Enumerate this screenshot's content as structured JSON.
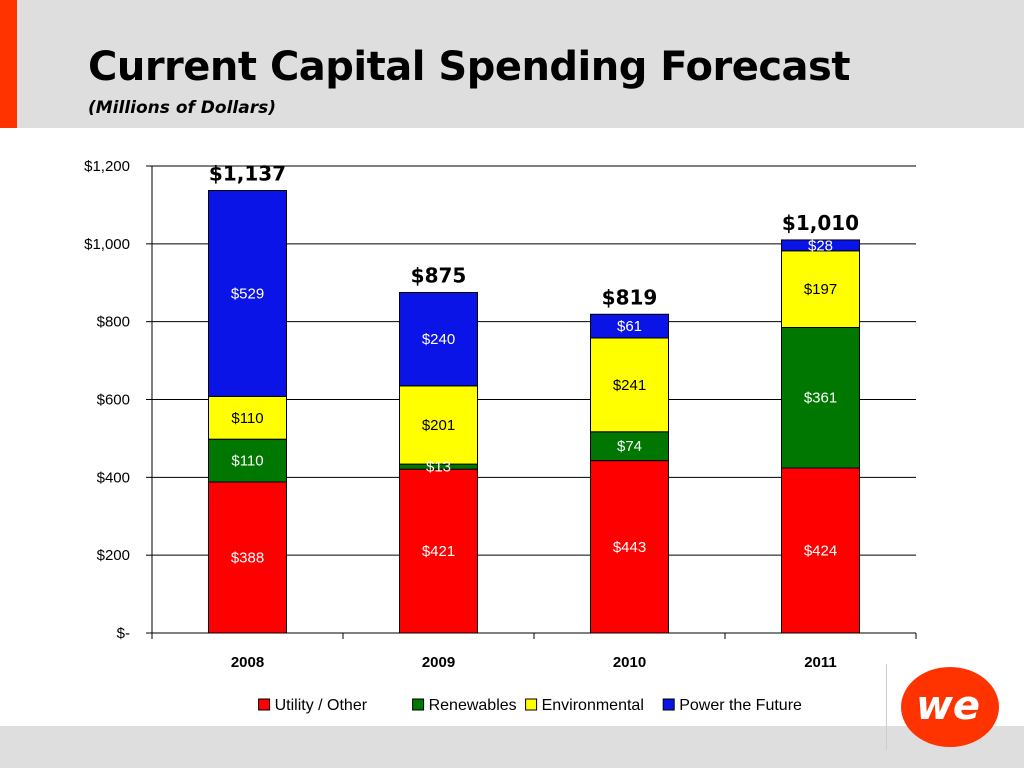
{
  "slide": {
    "title": "Current Capital Spending Forecast",
    "subtitle": "(Millions of Dollars)",
    "accent_color": "#ff3300"
  },
  "logo": {
    "text": "we",
    "color": "#ff3300",
    "icon": "we-energies-logo"
  },
  "chart_data": {
    "type": "bar",
    "stacked": true,
    "categories": [
      "2008",
      "2009",
      "2010",
      "2011"
    ],
    "series": [
      {
        "name": "Utility / Other",
        "color": "#ff0000",
        "values": [
          388,
          421,
          443,
          424
        ],
        "labels": [
          "$388",
          "$421",
          "$443",
          "$424"
        ]
      },
      {
        "name": "Renewables",
        "color": "#007700",
        "values": [
          110,
          13,
          74,
          361
        ],
        "labels": [
          "$110",
          "$13",
          "$74",
          "$361"
        ]
      },
      {
        "name": "Environmental",
        "color": "#ffff00",
        "values": [
          110,
          201,
          241,
          197
        ],
        "labels": [
          "$110",
          "$201",
          "$241",
          "$197"
        ]
      },
      {
        "name": "Power the Future",
        "color": "#0a14e6",
        "values": [
          529,
          240,
          61,
          28
        ],
        "labels": [
          "$529",
          "$240",
          "$61",
          "$28"
        ]
      }
    ],
    "totals": [
      "$1,137",
      "$875",
      "$819",
      "$1,010"
    ],
    "ylim": [
      0,
      1200
    ],
    "yticks": [
      0,
      200,
      400,
      600,
      800,
      1000,
      1200
    ],
    "ytick_labels": [
      "$-",
      "$200",
      "$400",
      "$600",
      "$800",
      "$1,000",
      "$1,200"
    ],
    "grid": true,
    "legend": "bottom"
  }
}
